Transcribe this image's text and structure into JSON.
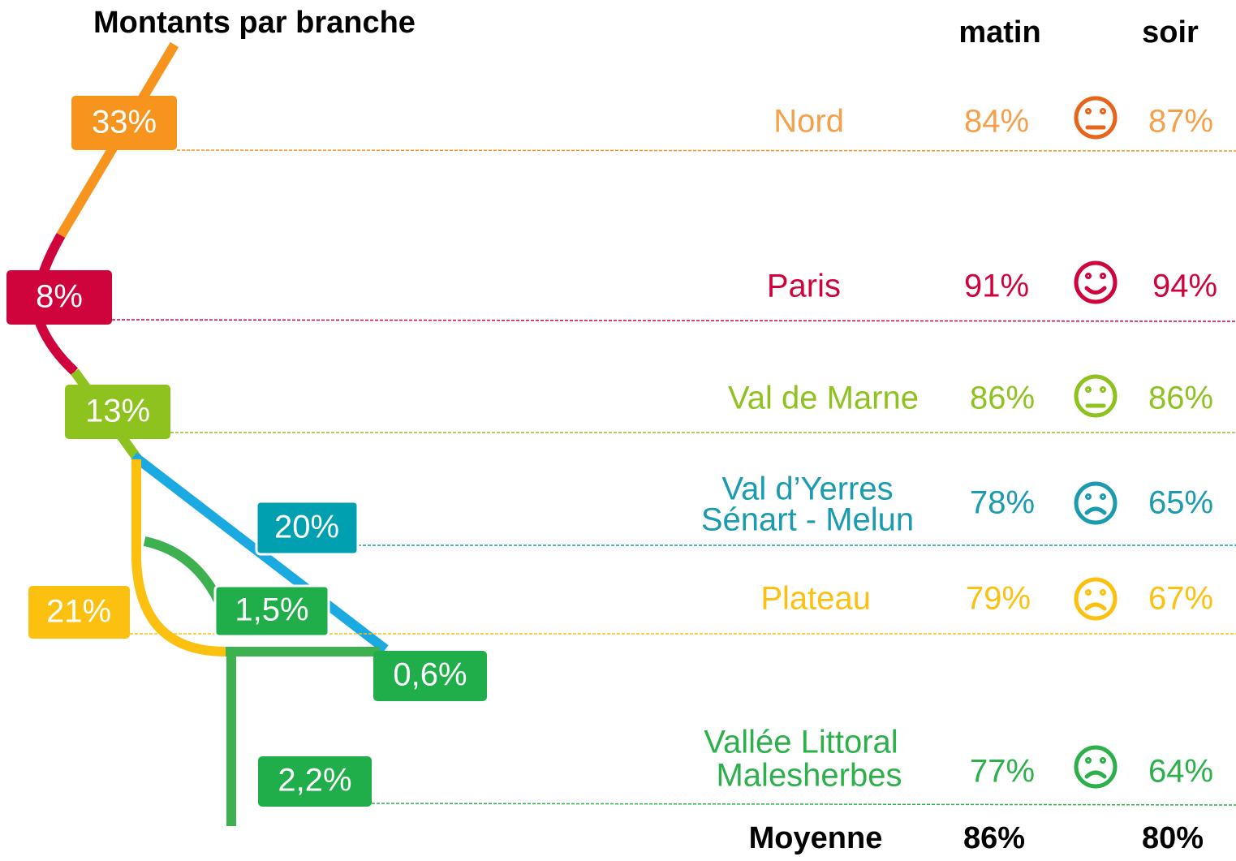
{
  "title": "Montants par branche",
  "headers": {
    "morning": "matin",
    "evening": "soir"
  },
  "branches": [
    "33%",
    "8%",
    "13%",
    "20%",
    "21%",
    "1,5%",
    "0,6%",
    "2,2%"
  ],
  "rows": [
    {
      "name": [
        "Nord"
      ],
      "morning": "84%",
      "evening": "87%"
    },
    {
      "name": [
        "Paris"
      ],
      "morning": "91%",
      "evening": "94%"
    },
    {
      "name": [
        "Val de Marne"
      ],
      "morning": "86%",
      "evening": "86%"
    },
    {
      "name": [
        "Val d’Yerres",
        "Sénart - Melun"
      ],
      "morning": "78%",
      "evening": "65%"
    },
    {
      "name": [
        "Plateau"
      ],
      "morning": "79%",
      "evening": "67%"
    },
    {
      "name": [
        "Vallée Littoral",
        "Malesherbes"
      ],
      "morning": "77%",
      "evening": "64%"
    }
  ],
  "average": {
    "label": "Moyenne",
    "morning": "86%",
    "evening": "80%"
  }
}
